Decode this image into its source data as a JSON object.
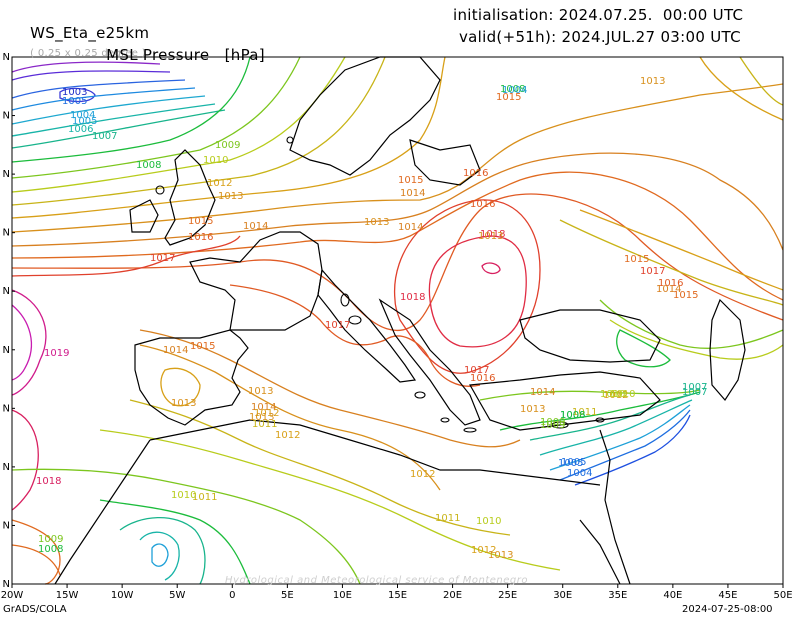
{
  "header": {
    "model": "WS_Eta_e25km",
    "resolution": "( 0.25 x 0.25 degree )",
    "field": "MSL Pressure",
    "units": "[hPa]",
    "initialisation": "initialisation: 2024.07.25.  00:00 UTC",
    "valid": "valid(+51h): 2024.JUL.27 03:00 UTC"
  },
  "footer": {
    "software": "GrADS/COLA",
    "timestamp": "2024-07-25-08:00",
    "watermark": "Hydrological and Meteorological service of Montenegro"
  },
  "axes": {
    "x_ticks": [
      "20W",
      "15W",
      "10W",
      "5W",
      "0",
      "5E",
      "10E",
      "15E",
      "20E",
      "25E",
      "30E",
      "35E",
      "40E",
      "45E",
      "50E"
    ],
    "y_ticks": [
      "N",
      "N",
      "N",
      "N",
      "N",
      "N",
      "N",
      "N",
      "N",
      "N"
    ]
  },
  "contour_labels": [
    {
      "text": "1003",
      "color": "#2030c8"
    },
    {
      "text": "1005",
      "color": "#1e6ee0"
    },
    {
      "text": "1004",
      "color": "#1ea0d8"
    },
    {
      "text": "1005",
      "color": "#1ea0d8"
    },
    {
      "text": "1006",
      "color": "#18b4a8"
    },
    {
      "text": "1007",
      "color": "#18b48c"
    },
    {
      "text": "1008",
      "color": "#1cbc3c"
    },
    {
      "text": "1009",
      "color": "#7cc61e"
    },
    {
      "text": "1010",
      "color": "#b8cc1c"
    },
    {
      "text": "1012",
      "color": "#d8a018"
    },
    {
      "text": "1013",
      "color": "#d8901c"
    },
    {
      "text": "1014",
      "color": "#d88020"
    },
    {
      "text": "1015",
      "color": "#e06a20"
    },
    {
      "text": "1016",
      "color": "#e05a24"
    },
    {
      "text": "1017",
      "color": "#e0402c"
    },
    {
      "text": "1018",
      "color": "#e02c44"
    },
    {
      "text": "1019",
      "color": "#d01c8c"
    },
    {
      "text": "1018",
      "color": "#d82060"
    },
    {
      "text": "1017",
      "color": "#e0402c"
    },
    {
      "text": "1016",
      "color": "#e05a24"
    },
    {
      "text": "1015",
      "color": "#e06a20"
    },
    {
      "text": "1014",
      "color": "#d88020"
    },
    {
      "text": "1013",
      "color": "#d8901c"
    },
    {
      "text": "1012",
      "color": "#d8a018"
    },
    {
      "text": "1011",
      "color": "#c8b418"
    },
    {
      "text": "1010",
      "color": "#b8cc1c"
    },
    {
      "text": "1009",
      "color": "#7cc61e"
    },
    {
      "text": "1008",
      "color": "#1cbc3c"
    },
    {
      "text": "1007",
      "color": "#18b48c"
    },
    {
      "text": "1006",
      "color": "#18b4a8"
    },
    {
      "text": "1005",
      "color": "#1e6ee0"
    },
    {
      "text": "1004",
      "color": "#1e6ee0"
    },
    {
      "text": "1014",
      "color": "#d88020"
    },
    {
      "text": "1016",
      "color": "#e05a24"
    },
    {
      "text": "1015",
      "color": "#e06a20"
    },
    {
      "text": "1014",
      "color": "#d88020"
    },
    {
      "text": "1013",
      "color": "#d8901c"
    },
    {
      "text": "1012",
      "color": "#d8a018"
    },
    {
      "text": "1011",
      "color": "#c8b418"
    },
    {
      "text": "1010",
      "color": "#b8cc1c"
    },
    {
      "text": "1013",
      "color": "#d8901c"
    },
    {
      "text": "1014",
      "color": "#d88020"
    },
    {
      "text": "1012",
      "color": "#d8a018"
    },
    {
      "text": "1013",
      "color": "#d8901c"
    },
    {
      "text": "1015",
      "color": "#e06a20"
    },
    {
      "text": "1017",
      "color": "#e0402c"
    },
    {
      "text": "1016",
      "color": "#e05a24"
    },
    {
      "text": "1015",
      "color": "#e06a20"
    },
    {
      "text": "1014",
      "color": "#d88020"
    },
    {
      "text": "1012",
      "color": "#d8a018"
    },
    {
      "text": "1013",
      "color": "#d8901c"
    },
    {
      "text": "1011",
      "color": "#c8b418"
    },
    {
      "text": "1012",
      "color": "#d8a018"
    },
    {
      "text": "1013",
      "color": "#d8901c"
    },
    {
      "text": "1010",
      "color": "#b8cc1c"
    },
    {
      "text": "1011",
      "color": "#c8b418"
    },
    {
      "text": "1009",
      "color": "#7cc61e"
    },
    {
      "text": "1008",
      "color": "#1cbc3c"
    },
    {
      "text": "1016",
      "color": "#e05a24"
    },
    {
      "text": "1017",
      "color": "#e0402c"
    },
    {
      "text": "1014",
      "color": "#d88020"
    },
    {
      "text": "1013",
      "color": "#d8901c"
    },
    {
      "text": "1010",
      "color": "#b8cc1c"
    },
    {
      "text": "1009",
      "color": "#7cc61e"
    },
    {
      "text": "1008",
      "color": "#1cbc3c"
    },
    {
      "text": "1007",
      "color": "#18b48c"
    },
    {
      "text": "1005",
      "color": "#1e6ee0"
    },
    {
      "text": "1004",
      "color": "#1ea0d8"
    },
    {
      "text": "1015",
      "color": "#e06a20"
    },
    {
      "text": "1013",
      "color": "#d8901c"
    },
    {
      "text": "1018",
      "color": "#e02c44"
    }
  ]
}
